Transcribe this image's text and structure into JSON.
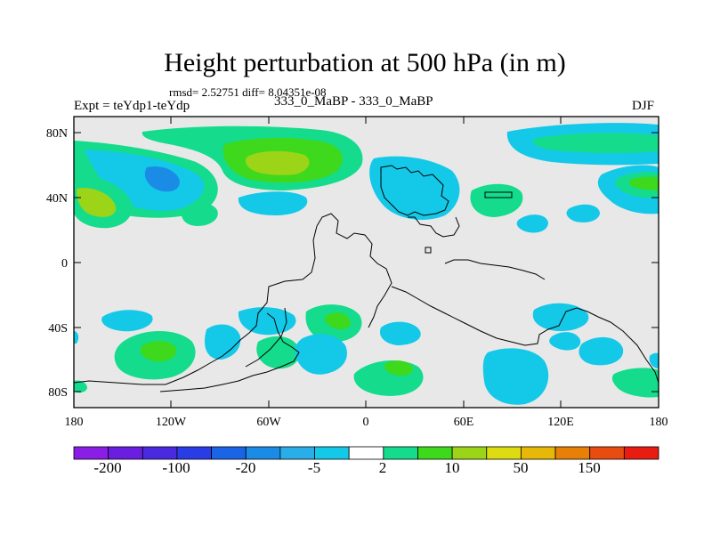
{
  "figure": {
    "title": "Height perturbation at 500 hPa (in m)",
    "stats": "rmsd= 2.52751 diff= 8.04351e-08",
    "experiment": "Expt = teYdp1-teYdp",
    "center_label": "333_0_MaBP - 333_0_MaBP",
    "season": "DJF"
  },
  "axes": {
    "y_labels": [
      "80N",
      "40N",
      "0",
      "40S",
      "80S"
    ],
    "x_labels": [
      "180",
      "120W",
      "60W",
      "0",
      "60E",
      "120E",
      "180"
    ],
    "background_color": "#e8e8e8"
  },
  "colorbar": {
    "colors": [
      "#8a1ee6",
      "#6a1ee0",
      "#4a2ae0",
      "#2a3ce6",
      "#1a64e6",
      "#1a8ce6",
      "#2aaeea",
      "#14c8e8",
      "#ffffff",
      "#14dc8c",
      "#3ed81c",
      "#9cd418",
      "#dcdc10",
      "#e8b808",
      "#e88008",
      "#e84c10",
      "#e81c10"
    ],
    "labels": [
      "-200",
      "-100",
      "-20",
      "-5",
      "2",
      "10",
      "50",
      "150"
    ]
  },
  "palette": {
    "cyan": "#14c8e8",
    "blue": "#1a8ce6",
    "green": "#14dc8c",
    "light_green": "#3ed81c",
    "yellow_green": "#9cd418"
  }
}
